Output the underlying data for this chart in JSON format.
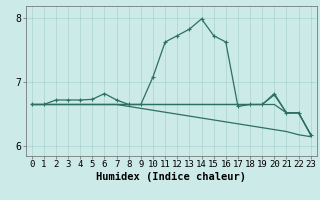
{
  "xlabel": "Humidex (Indice chaleur)",
  "bg_color": "#cceae7",
  "grid_color": "#aad4d0",
  "line_color": "#2d6e65",
  "x_values": [
    0,
    1,
    2,
    3,
    4,
    5,
    6,
    7,
    8,
    9,
    10,
    11,
    12,
    13,
    14,
    15,
    16,
    17,
    18,
    19,
    20,
    21,
    22,
    23
  ],
  "series_main": [
    6.65,
    6.65,
    6.72,
    6.72,
    6.72,
    6.73,
    6.82,
    6.72,
    6.65,
    6.65,
    7.08,
    7.62,
    7.72,
    7.82,
    7.98,
    7.72,
    7.62,
    6.62,
    6.65,
    6.65,
    6.82,
    6.52,
    6.52,
    6.18
  ],
  "series_flat1": [
    6.65,
    6.65,
    6.65,
    6.65,
    6.65,
    6.65,
    6.65,
    6.65,
    6.65,
    6.65,
    6.65,
    6.65,
    6.65,
    6.65,
    6.65,
    6.65,
    6.65,
    6.65,
    6.65,
    6.65,
    6.8,
    6.52,
    6.52,
    6.18
  ],
  "series_flat2": [
    6.65,
    6.65,
    6.65,
    6.65,
    6.65,
    6.65,
    6.65,
    6.65,
    6.65,
    6.65,
    6.65,
    6.65,
    6.65,
    6.65,
    6.65,
    6.65,
    6.65,
    6.65,
    6.65,
    6.65,
    6.65,
    6.52,
    6.52,
    6.18
  ],
  "series_diag": [
    6.65,
    6.65,
    6.65,
    6.65,
    6.65,
    6.65,
    6.65,
    6.65,
    6.62,
    6.59,
    6.56,
    6.53,
    6.5,
    6.47,
    6.44,
    6.41,
    6.38,
    6.35,
    6.32,
    6.29,
    6.26,
    6.23,
    6.18,
    6.15
  ],
  "ylim": [
    5.85,
    8.18
  ],
  "yticks": [
    6,
    7,
    8
  ],
  "xticks": [
    0,
    1,
    2,
    3,
    4,
    5,
    6,
    7,
    8,
    9,
    10,
    11,
    12,
    13,
    14,
    15,
    16,
    17,
    18,
    19,
    20,
    21,
    22,
    23
  ],
  "tick_fontsize": 6.5,
  "xlabel_fontsize": 7.5
}
